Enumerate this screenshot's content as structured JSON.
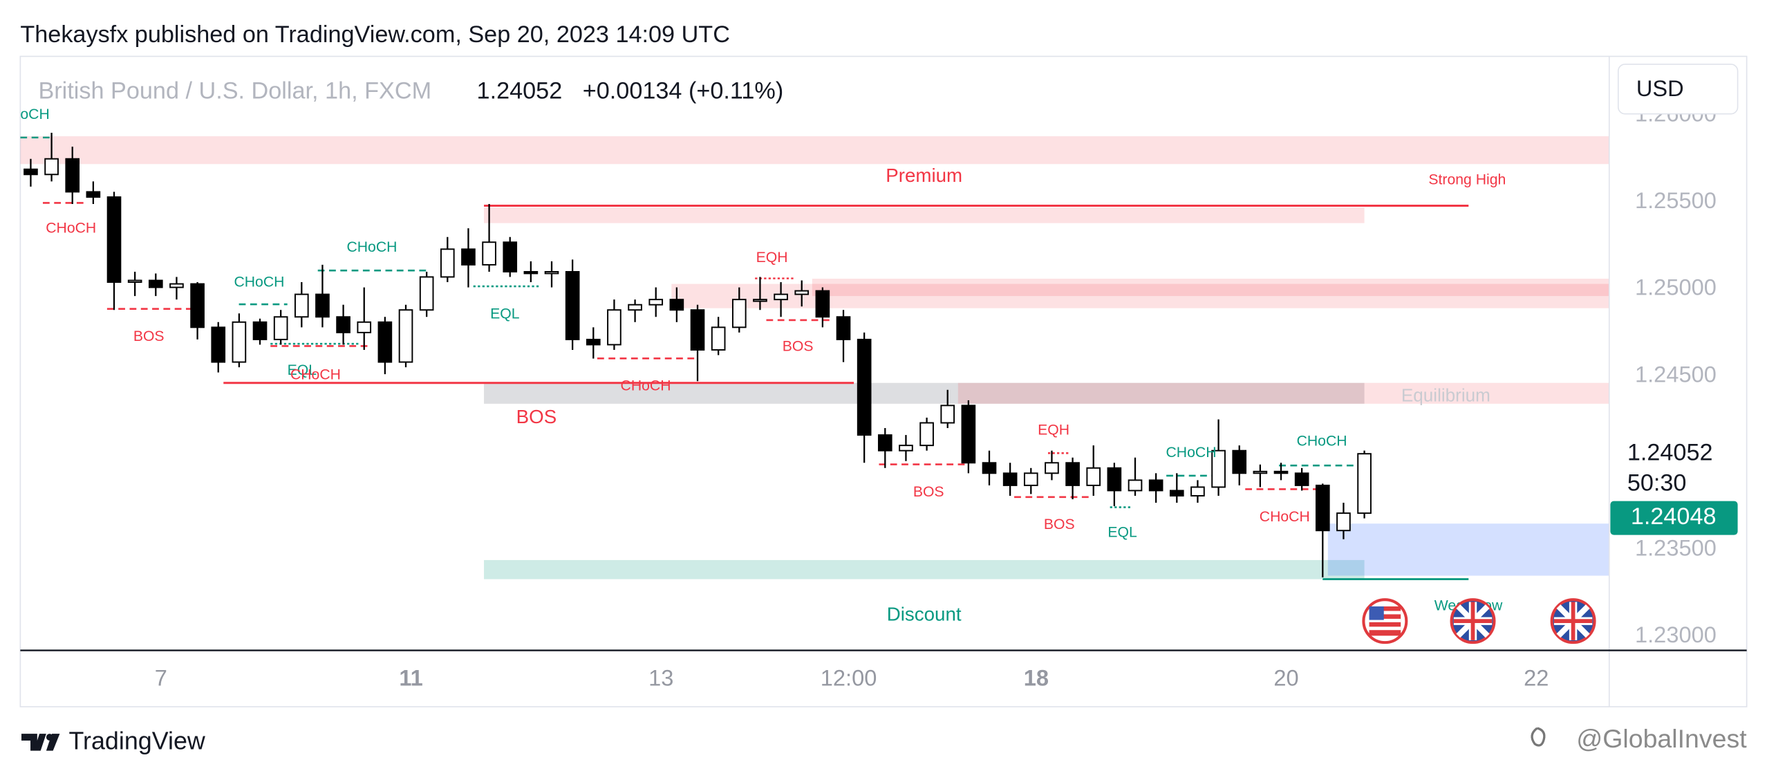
{
  "header": "Thekaysfx published on TradingView.com, Sep 20, 2023 14:09 UTC",
  "footer": {
    "brand": "TradingView",
    "watermark": "@GlobalInvest"
  },
  "chart_data": {
    "type": "candlestick",
    "title": "British Pound / U.S. Dollar, 1h, FXCM",
    "last_price": {
      "value": 1.24052,
      "label": "1.24052"
    },
    "change": "+0.00134 (+0.11%)",
    "currency": "USD",
    "countdown": "50:30",
    "bid_label": {
      "value": 1.24048,
      "label": "1.24048"
    },
    "up_color": "#ffffff",
    "down_color": "#000000",
    "wick_color": "#000000",
    "x": [
      2,
      6,
      10,
      14,
      18,
      22,
      26,
      30,
      34,
      38,
      42,
      46,
      50,
      54,
      58,
      62,
      66,
      70,
      74,
      78,
      82,
      86,
      90,
      94,
      98,
      102,
      106,
      110,
      114,
      118,
      122,
      126,
      130,
      134,
      138,
      142,
      146,
      150,
      154,
      158,
      162,
      166,
      170,
      174,
      178,
      182,
      186,
      190,
      194,
      198,
      202,
      206,
      210,
      214,
      218,
      222,
      226,
      230,
      234,
      238,
      242,
      246,
      250,
      254,
      258
    ],
    "open": [
      1.2569,
      1.2566,
      1.2575,
      1.2556,
      1.2553,
      1.2504,
      1.2505,
      1.2501,
      1.2503,
      1.2478,
      1.2458,
      1.2481,
      1.2471,
      1.2484,
      1.2497,
      1.2484,
      1.2475,
      1.2481,
      1.2458,
      1.2488,
      1.2507,
      1.2523,
      1.2514,
      1.2527,
      1.251,
      1.2509,
      1.251,
      1.2471,
      1.2468,
      1.2488,
      1.2491,
      1.2494,
      1.2488,
      1.2465,
      1.2478,
      1.2494,
      1.2494,
      1.2497,
      1.2499,
      1.2484,
      1.2471,
      1.2416,
      1.2407,
      1.241,
      1.2423,
      1.2433,
      1.24,
      1.2394,
      1.2387,
      1.2394,
      1.24,
      1.2387,
      1.2397,
      1.2384,
      1.239,
      1.2384,
      1.2381,
      1.2386,
      1.2407,
      1.2394,
      1.2395,
      1.2394,
      1.2387,
      1.2361,
      1.2371
    ],
    "high": [
      1.2575,
      1.259,
      1.2582,
      1.2562,
      1.2556,
      1.251,
      1.2509,
      1.2507,
      1.2504,
      1.2481,
      1.2486,
      1.2483,
      1.2488,
      1.2504,
      1.2514,
      1.2491,
      1.2501,
      1.2484,
      1.2491,
      1.251,
      1.253,
      1.2535,
      1.2549,
      1.253,
      1.2516,
      1.2516,
      1.2517,
      1.2478,
      1.2494,
      1.2494,
      1.2501,
      1.2501,
      1.2491,
      1.2484,
      1.2501,
      1.2507,
      1.2504,
      1.2505,
      1.2501,
      1.2488,
      1.2475,
      1.242,
      1.2416,
      1.2426,
      1.2442,
      1.2436,
      1.2407,
      1.24,
      1.2397,
      1.2407,
      1.2403,
      1.241,
      1.24,
      1.2403,
      1.2394,
      1.2394,
      1.239,
      1.2425,
      1.241,
      1.2399,
      1.24,
      1.2397,
      1.2388,
      1.2377,
      1.2407
    ],
    "low": [
      1.2559,
      1.2562,
      1.2549,
      1.2549,
      1.2488,
      1.2496,
      1.2496,
      1.2494,
      1.2471,
      1.2452,
      1.2455,
      1.2468,
      1.2468,
      1.2478,
      1.2478,
      1.2468,
      1.2465,
      1.2451,
      1.2455,
      1.2484,
      1.2504,
      1.2501,
      1.251,
      1.2507,
      1.2504,
      1.2501,
      1.2465,
      1.246,
      1.2465,
      1.2481,
      1.2484,
      1.2481,
      1.2447,
      1.2462,
      1.2475,
      1.2488,
      1.2484,
      1.249,
      1.2478,
      1.2458,
      1.24,
      1.2397,
      1.2401,
      1.2407,
      1.242,
      1.2394,
      1.2387,
      1.2381,
      1.2382,
      1.239,
      1.2379,
      1.2381,
      1.2375,
      1.2381,
      1.2377,
      1.2377,
      1.2377,
      1.2381,
      1.2387,
      1.2386,
      1.239,
      1.2384,
      1.2334,
      1.2356,
      1.2368
    ],
    "close": [
      1.2566,
      1.2575,
      1.2556,
      1.2553,
      1.2504,
      1.2505,
      1.2501,
      1.2503,
      1.2478,
      1.2458,
      1.2481,
      1.2471,
      1.2484,
      1.2497,
      1.2484,
      1.2475,
      1.2481,
      1.2458,
      1.2488,
      1.2507,
      1.2523,
      1.2514,
      1.2527,
      1.251,
      1.2509,
      1.251,
      1.2471,
      1.2468,
      1.2488,
      1.2491,
      1.2494,
      1.2488,
      1.2465,
      1.2478,
      1.2494,
      1.2494,
      1.2497,
      1.2499,
      1.2484,
      1.2471,
      1.2416,
      1.2407,
      1.241,
      1.2423,
      1.2433,
      1.24,
      1.2394,
      1.2387,
      1.2394,
      1.24,
      1.2387,
      1.2397,
      1.2384,
      1.239,
      1.2384,
      1.2381,
      1.2386,
      1.2407,
      1.2394,
      1.2395,
      1.2394,
      1.2387,
      1.2361,
      1.2371,
      1.24052
    ],
    "xlim": [
      0,
      305
    ],
    "xticks": [
      {
        "value": 27,
        "label": "7",
        "bold": false
      },
      {
        "value": 75,
        "label": "11",
        "bold": true
      },
      {
        "value": 123,
        "label": "13",
        "bold": false
      },
      {
        "value": 159,
        "label": "12:00",
        "bold": false
      },
      {
        "value": 195,
        "label": "18",
        "bold": true
      },
      {
        "value": 243,
        "label": "20",
        "bold": false
      },
      {
        "value": 291,
        "label": "22",
        "bold": false
      }
    ],
    "ylim": [
      1.2292,
      1.2634
    ],
    "yticks": [
      {
        "value": 1.23,
        "label": "1.23000"
      },
      {
        "value": 1.235,
        "label": "1.23500"
      },
      {
        "value": 1.245,
        "label": "1.24500"
      },
      {
        "value": 1.25,
        "label": "1.25000"
      },
      {
        "value": 1.255,
        "label": "1.25500"
      },
      {
        "value": 1.26,
        "label": "1.26000"
      }
    ],
    "zones": [
      {
        "x": [
          0,
          305
        ],
        "y": [
          1.2572,
          1.2588
        ],
        "color": "rgba(242,54,69,0.15)"
      },
      {
        "x": [
          89,
          258
        ],
        "y": [
          1.2538,
          1.2547
        ],
        "color": "rgba(242,54,69,0.15)"
      },
      {
        "x": [
          125,
          305
        ],
        "y": [
          1.2489,
          1.2503
        ],
        "color": "rgba(242,54,69,0.15)"
      },
      {
        "x": [
          152,
          305
        ],
        "y": [
          1.2496,
          1.2506
        ],
        "color": "rgba(242,54,69,0.15)"
      },
      {
        "x": [
          89,
          258
        ],
        "y": [
          1.2434,
          1.2446
        ],
        "color": "rgba(120,123,134,0.25)"
      },
      {
        "x": [
          180,
          305
        ],
        "y": [
          1.2434,
          1.2446
        ],
        "color": "rgba(242,54,69,0.15)"
      },
      {
        "x": [
          89,
          258
        ],
        "y": [
          1.2333,
          1.2344
        ],
        "color": "rgba(8,153,129,0.2)"
      },
      {
        "x": [
          251,
          305
        ],
        "y": [
          1.2335,
          1.2365
        ],
        "color": "rgba(41,98,255,0.2)"
      }
    ],
    "levels": [
      {
        "x": [
          89,
          278
        ],
        "y": 1.2548,
        "color": "#f23645"
      },
      {
        "x": [
          39,
          160
        ],
        "y": 1.2446,
        "color": "#f23645"
      },
      {
        "x": [
          250,
          278
        ],
        "y": 1.2333,
        "color": "#089981"
      }
    ],
    "annotations": [
      {
        "text": "oCH",
        "color": "#089981"
      },
      {
        "text": "CHoCH",
        "color": "#f23645"
      },
      {
        "text": "BOS",
        "color": "#f23645"
      },
      {
        "text": "CHoCH",
        "color": "#089981"
      },
      {
        "text": "CHoCH",
        "color": "#089981"
      },
      {
        "text": "EQL",
        "color": "#089981"
      },
      {
        "text": "EQL",
        "color": "#089981"
      },
      {
        "text": "CHoCH",
        "color": "#f23645"
      },
      {
        "text": "CHoCH",
        "color": "#f23645"
      },
      {
        "text": "EQH",
        "color": "#f23645"
      },
      {
        "text": "BOS",
        "color": "#f23645"
      },
      {
        "text": "BOS",
        "color": "#f23645"
      },
      {
        "text": "BOS",
        "color": "#f23645"
      },
      {
        "text": "EQH",
        "color": "#f23645"
      },
      {
        "text": "BOS",
        "color": "#f23645"
      },
      {
        "text": "EQL",
        "color": "#089981"
      },
      {
        "text": "CHoCH",
        "color": "#089981"
      },
      {
        "text": "CHoCH",
        "color": "#f23645"
      },
      {
        "text": "CHoCH",
        "color": "#089981"
      },
      {
        "text": "Premium",
        "color": "#f23645"
      },
      {
        "text": "Strong High",
        "color": "#f23645"
      },
      {
        "text": "Equilibrium",
        "color": "#c9cbd1"
      },
      {
        "text": "Discount",
        "color": "#089981"
      },
      {
        "text": "Weak Low",
        "color": "#089981"
      }
    ]
  }
}
